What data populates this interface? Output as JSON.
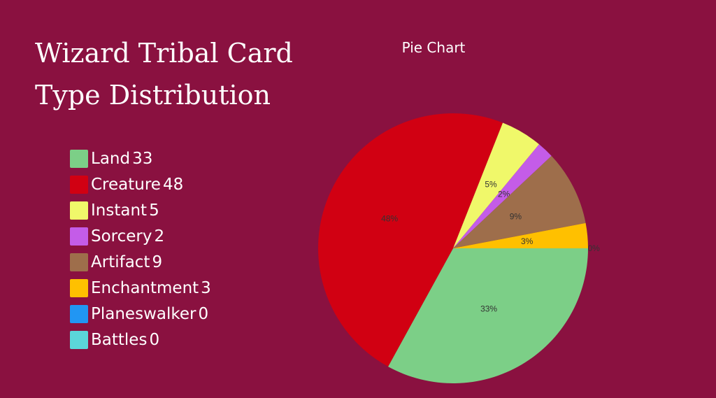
{
  "title_line1": "Wizard Tribal Card",
  "title_line2": "Type Distribution",
  "chart_data": {
    "type": "pie",
    "title": "Pie Chart",
    "slices": [
      {
        "name": "Land",
        "value": 33,
        "label": "33%",
        "color": "#7ccf87"
      },
      {
        "name": "Creature",
        "value": 48,
        "label": "48%",
        "color": "#d10012"
      },
      {
        "name": "Instant",
        "value": 5,
        "label": "5%",
        "color": "#f0f86a"
      },
      {
        "name": "Sorcery",
        "value": 2,
        "label": "2%",
        "color": "#c45ce8"
      },
      {
        "name": "Artifact",
        "value": 9,
        "label": "9%",
        "color": "#9e6e4b"
      },
      {
        "name": "Enchantment",
        "value": 3,
        "label": "3%",
        "color": "#ffc000"
      },
      {
        "name": "Planeswalker",
        "value": 0,
        "label": "0%",
        "color": "#2196f3"
      },
      {
        "name": "Battles",
        "value": 0,
        "label": "0%",
        "color": "#5bd6d9"
      }
    ],
    "legend_position": "left"
  }
}
